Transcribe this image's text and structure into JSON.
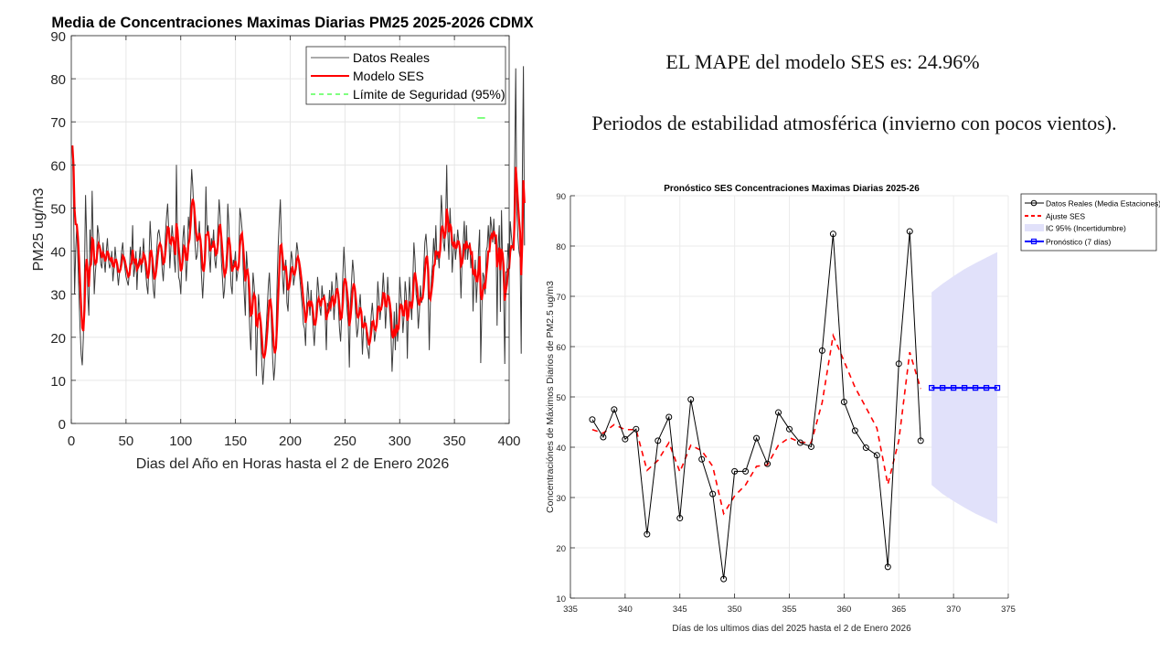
{
  "annotations": {
    "mape": "EL MAPE del modelo SES es: 24.96%",
    "note": "Periodos de estabilidad atmosférica (invierno con pocos vientos)."
  },
  "chart_data": [
    {
      "id": "left",
      "type": "line",
      "title": "Media de Concentraciones Maximas Diarias PM25 2025-2026 CDMX",
      "xlabel": "Dias del Año en Horas hasta el 2 de Enero 2026",
      "ylabel": "PM25 ug/m3",
      "xlim": [
        0,
        400
      ],
      "ylim": [
        0,
        90
      ],
      "xticks": [
        0,
        50,
        100,
        150,
        200,
        250,
        300,
        350,
        400
      ],
      "yticks": [
        0,
        10,
        20,
        30,
        40,
        50,
        60,
        70,
        80,
        90
      ],
      "grid": true,
      "legend_position": "top-right",
      "legend": [
        "Datos Reales",
        "Modelo SES",
        "Límite de Seguridad (95%)"
      ],
      "colors": {
        "real": "#000000",
        "ses": "#ff0000",
        "limit": "#00ff00"
      },
      "safety_limit": {
        "value": 70.9,
        "x_start": 371,
        "x_end": 378
      },
      "series": [
        {
          "name": "Datos Reales",
          "x_start": 1,
          "values": [
            64.5,
            52,
            30,
            40,
            46,
            38,
            30,
            22,
            16,
            13.5,
            20,
            35,
            53,
            43,
            30,
            25,
            45,
            38,
            54,
            42,
            30,
            35,
            38,
            46,
            44,
            40,
            37,
            36,
            42,
            38,
            35,
            40,
            43,
            38,
            36,
            37,
            40,
            33,
            36,
            41,
            38,
            35,
            32,
            35,
            37,
            40,
            42,
            38,
            36,
            34,
            33,
            32,
            35,
            41,
            38,
            46,
            34,
            36,
            40,
            31,
            37,
            38,
            41,
            35,
            38,
            43,
            38,
            35,
            32,
            30,
            38,
            47,
            42,
            35,
            31,
            29,
            36,
            40,
            44,
            45,
            43,
            40,
            36,
            33,
            38,
            44,
            48,
            51,
            45,
            36,
            41,
            46,
            43,
            38,
            35,
            60,
            42,
            34,
            33,
            30,
            37,
            43,
            46,
            40,
            33,
            38,
            48,
            45,
            52,
            59,
            55,
            49,
            42,
            38,
            39,
            43,
            47,
            40,
            34,
            29,
            34,
            42,
            55,
            44,
            46,
            39,
            35,
            43,
            41,
            45,
            38,
            36,
            40,
            46,
            52,
            48,
            38,
            34,
            29,
            31,
            36,
            40,
            51,
            46,
            38,
            32,
            30,
            38,
            37,
            40,
            33,
            35,
            38,
            50,
            48,
            45,
            36,
            30,
            25,
            40,
            36,
            30,
            22,
            17,
            26,
            35,
            32,
            28,
            11,
            22,
            30,
            26,
            20,
            14,
            9,
            13,
            18,
            22,
            27,
            32,
            35,
            29,
            22,
            15,
            10,
            13,
            20,
            32,
            41,
            47,
            52,
            42,
            34,
            30,
            36,
            38,
            28,
            26,
            33,
            36,
            40,
            38,
            32,
            34,
            38,
            42,
            40,
            36,
            33,
            30,
            27,
            23,
            22,
            18,
            28,
            33,
            29,
            25,
            31,
            26,
            22,
            18,
            23,
            28,
            34,
            31,
            27,
            25,
            32,
            29,
            30,
            25,
            17,
            28,
            27,
            31,
            26,
            33,
            30,
            24,
            29,
            35,
            33,
            27,
            22,
            19,
            25,
            34,
            41,
            36,
            31,
            26,
            23,
            13,
            28,
            33,
            38,
            35,
            29,
            24,
            20,
            22,
            27,
            30,
            24,
            16,
            22,
            25,
            23,
            18,
            17,
            15,
            21,
            25,
            28,
            24,
            19,
            21,
            25,
            33,
            29,
            24,
            27,
            30,
            35,
            30,
            22,
            27,
            34,
            29,
            25,
            21,
            12,
            18,
            26,
            17,
            28,
            19,
            23,
            34,
            30,
            27,
            21,
            25,
            33,
            30,
            15,
            27,
            34,
            28,
            24,
            33,
            42,
            38,
            30,
            28,
            22,
            26,
            32,
            28,
            30,
            36,
            42,
            44,
            40,
            30,
            17,
            28,
            34,
            37,
            43,
            38,
            46,
            38,
            40,
            36,
            44,
            53,
            48,
            42,
            40,
            47,
            60,
            44,
            38,
            50,
            44,
            35,
            40,
            44,
            38,
            41,
            45,
            42,
            38,
            29,
            38,
            42,
            47,
            38,
            46,
            38,
            41,
            42,
            36,
            40,
            26,
            34,
            38,
            28,
            33,
            40,
            45,
            14,
            26,
            35,
            34,
            30,
            40,
            41,
            46,
            40,
            48,
            45.5,
            42,
            47.5,
            41.6,
            43.6,
            22.7,
            41.3,
            46,
            25.9,
            49.5,
            37.6,
            30.7,
            13.8,
            35.2,
            35.2,
            41.8,
            36.7,
            46.9,
            43.6,
            40.9,
            40.1,
            59.2,
            82.4,
            49,
            43.3,
            39.9,
            38.4,
            16.2,
            56.6,
            82.9,
            41.3
          ]
        },
        {
          "name": "Modelo SES",
          "x_start": 1
        }
      ]
    },
    {
      "id": "right",
      "type": "line",
      "title": "Pronóstico SES Concentraciones Maximas Diarias 2025-26",
      "xlabel": "Días de los ultimos dias del 2025 hasta el 2 de Enero 2026",
      "ylabel": "Concentraciónes de Máximos Diarios de PM2.5 ug/m3",
      "xlim": [
        335,
        375
      ],
      "ylim": [
        10,
        90
      ],
      "xticks": [
        335,
        340,
        345,
        350,
        355,
        360,
        365,
        370,
        375
      ],
      "yticks": [
        10,
        20,
        30,
        40,
        50,
        60,
        70,
        80,
        90
      ],
      "grid": true,
      "legend_position": "outside-top-right",
      "legend": [
        "Datos Reales (Media Estaciones)",
        "Ajuste SES",
        "IC 95% (Incertidumbre)",
        "Pronóstico (7 días)"
      ],
      "colors": {
        "real": "#000000",
        "ses": "#ff0000",
        "ci": "#e1e1fa",
        "forecast": "#0000ff"
      },
      "x": [
        337,
        338,
        339,
        340,
        341,
        342,
        343,
        344,
        345,
        346,
        347,
        348,
        349,
        350,
        351,
        352,
        353,
        354,
        355,
        356,
        357,
        358,
        359,
        360,
        361,
        362,
        363,
        364,
        365,
        366,
        367
      ],
      "series": [
        {
          "name": "Datos Reales (Media Estaciones)",
          "values": [
            45.5,
            42.0,
            47.5,
            41.6,
            43.6,
            22.7,
            41.3,
            46.0,
            25.9,
            49.5,
            37.6,
            30.7,
            13.8,
            35.2,
            35.2,
            41.8,
            36.7,
            46.9,
            43.6,
            40.9,
            40.1,
            59.2,
            82.4,
            49.0,
            43.3,
            39.9,
            38.4,
            16.2,
            56.6,
            82.9,
            41.3
          ]
        },
        {
          "name": "Ajuste SES",
          "values": [
            43.5,
            42.8,
            44.5,
            43.5,
            43.5,
            35.4,
            37.4,
            40.9,
            35.1,
            40.4,
            39.3,
            36.2,
            26.8,
            30.3,
            32.5,
            36.2,
            36.5,
            40.4,
            41.9,
            41.0,
            40.9,
            48.9,
            62.2,
            57.1,
            51.9,
            47.9,
            43.8,
            32.6,
            41.3,
            58.9,
            51.6
          ]
        },
        {
          "name": "Pronóstico (7 días)",
          "x": [
            368,
            369,
            370,
            371,
            372,
            373,
            374
          ],
          "values": [
            51.8,
            51.8,
            51.8,
            51.8,
            51.8,
            51.8,
            51.8
          ]
        },
        {
          "name": "IC 95% (Incertidumbre)",
          "x": [
            368,
            369,
            370,
            371,
            372,
            373,
            374
          ],
          "upper": [
            70.8,
            72.5,
            74.0,
            75.4,
            76.6,
            77.7,
            78.8
          ],
          "lower": [
            32.5,
            30.7,
            29.3,
            28.0,
            26.8,
            25.8,
            24.8
          ]
        }
      ]
    }
  ]
}
